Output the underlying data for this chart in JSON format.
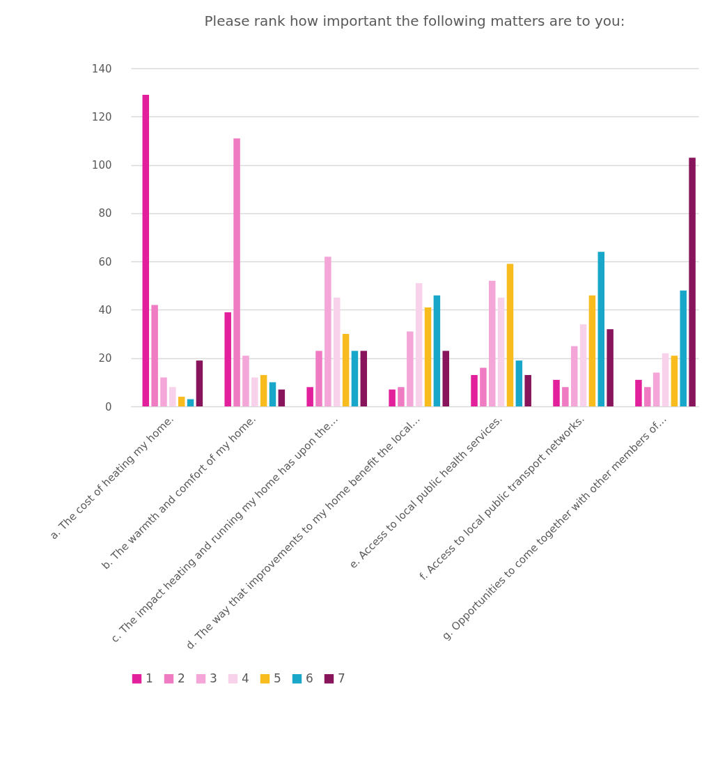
{
  "chart_data": {
    "type": "bar",
    "title": "Please rank how important the following matters are to you:",
    "categories": [
      "a. The cost of heating my home.",
      "b. The warmth and comfort of my home.",
      "c. The impact heating and running my home has upon the…",
      "d. The way that improvements to my home benefit the local…",
      "e. Access to local public health services.",
      "f. Access to local public transport networks.",
      "g. Opportunities to come together with other members of…"
    ],
    "series": [
      {
        "name": "1",
        "color": "#e3209b",
        "values": [
          129,
          39,
          8,
          7,
          13,
          11,
          11
        ]
      },
      {
        "name": "2",
        "color": "#ef7cc2",
        "values": [
          42,
          111,
          23,
          8,
          16,
          8,
          8
        ]
      },
      {
        "name": "3",
        "color": "#f3a6d7",
        "values": [
          12,
          21,
          62,
          31,
          52,
          25,
          14
        ]
      },
      {
        "name": "4",
        "color": "#f8d1ea",
        "values": [
          8,
          12,
          45,
          51,
          45,
          34,
          22
        ]
      },
      {
        "name": "5",
        "color": "#f8bc1f",
        "values": [
          4,
          13,
          30,
          41,
          59,
          46,
          21
        ]
      },
      {
        "name": "6",
        "color": "#18a7c9",
        "values": [
          3,
          10,
          23,
          46,
          19,
          64,
          48
        ]
      },
      {
        "name": "7",
        "color": "#88145c",
        "values": [
          19,
          7,
          23,
          23,
          13,
          32,
          103
        ]
      }
    ],
    "ylim": [
      0,
      140
    ],
    "yticks": [
      0,
      20,
      40,
      60,
      80,
      100,
      120,
      140
    ],
    "grid": "y",
    "legend": "bottom"
  }
}
